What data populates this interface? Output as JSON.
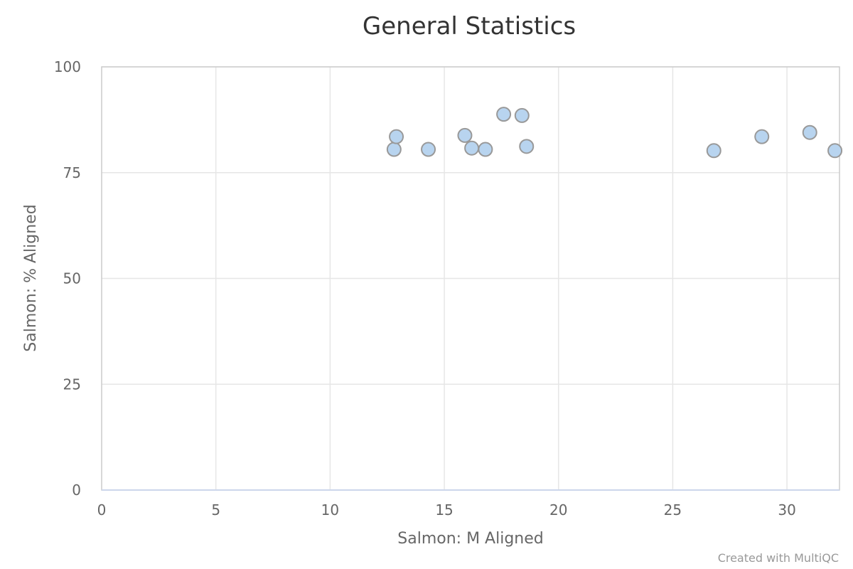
{
  "chart_data": {
    "type": "scatter",
    "title": "General Statistics",
    "xlabel": "Salmon: M Aligned",
    "ylabel": "Salmon: % Aligned",
    "xlim": [
      0,
      32.3
    ],
    "ylim": [
      0,
      100
    ],
    "x_ticks": [
      "0",
      "5",
      "10",
      "15",
      "20",
      "25",
      "30"
    ],
    "y_ticks": [
      "0",
      "25",
      "50",
      "75",
      "100"
    ],
    "grid": true,
    "point_color": "#b8d4ef",
    "point_border_color": "#999999",
    "points": [
      {
        "x": 12.8,
        "y": 80.5
      },
      {
        "x": 12.9,
        "y": 83.5
      },
      {
        "x": 14.3,
        "y": 80.5
      },
      {
        "x": 15.9,
        "y": 83.8
      },
      {
        "x": 16.2,
        "y": 80.8
      },
      {
        "x": 16.8,
        "y": 80.5
      },
      {
        "x": 17.6,
        "y": 88.8
      },
      {
        "x": 18.4,
        "y": 88.5
      },
      {
        "x": 18.6,
        "y": 81.2
      },
      {
        "x": 26.8,
        "y": 80.2
      },
      {
        "x": 28.9,
        "y": 83.5
      },
      {
        "x": 31.0,
        "y": 84.5
      },
      {
        "x": 32.1,
        "y": 80.2
      }
    ],
    "credit": "Created with MultiQC"
  }
}
